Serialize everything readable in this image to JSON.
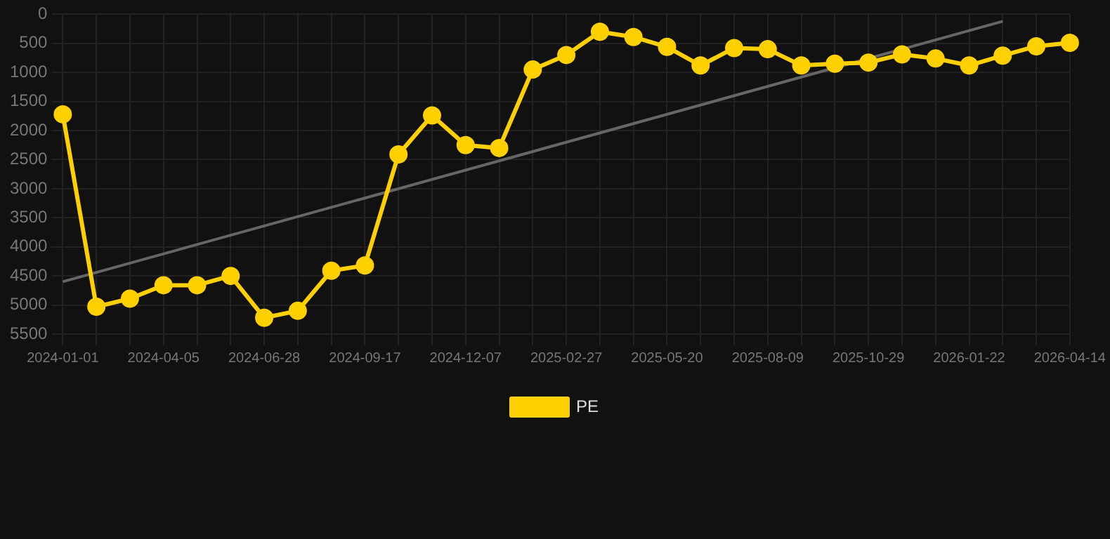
{
  "chart_data": {
    "type": "line",
    "categories": [
      "2024-01-01",
      null,
      null,
      "2024-04-05",
      null,
      null,
      "2024-06-28",
      null,
      null,
      "2024-09-17",
      null,
      null,
      "2024-12-07",
      null,
      null,
      "2025-02-27",
      null,
      null,
      "2025-05-20",
      null,
      null,
      "2025-08-09",
      null,
      null,
      "2025-10-29",
      null,
      null,
      "2026-01-22",
      null,
      null,
      "2026-04-14"
    ],
    "series": [
      {
        "name": "PE",
        "color": "#ffd000",
        "values": [
          1720,
          5030,
          4890,
          4660,
          4660,
          4500,
          5220,
          5100,
          4410,
          4320,
          2410,
          1740,
          2250,
          2300,
          950,
          700,
          300,
          390,
          560,
          880,
          580,
          600,
          880,
          850,
          830,
          690,
          760,
          880,
          710,
          550,
          490
        ],
        "marker": "circle"
      },
      {
        "type": "line",
        "color": "#666666",
        "values": [
          4600,
          null,
          null,
          null,
          null,
          null,
          null,
          null,
          null,
          null,
          null,
          null,
          null,
          null,
          null,
          null,
          null,
          null,
          null,
          null,
          null,
          null,
          null,
          null,
          null,
          null,
          null,
          null,
          120,
          null,
          null
        ],
        "marker": "none"
      }
    ],
    "ylim": [
      5500,
      0
    ],
    "yticks": [
      0,
      500,
      1000,
      1500,
      2000,
      2500,
      3000,
      3500,
      4000,
      4500,
      5000,
      5500
    ],
    "grid": true,
    "legend": "bottom"
  }
}
